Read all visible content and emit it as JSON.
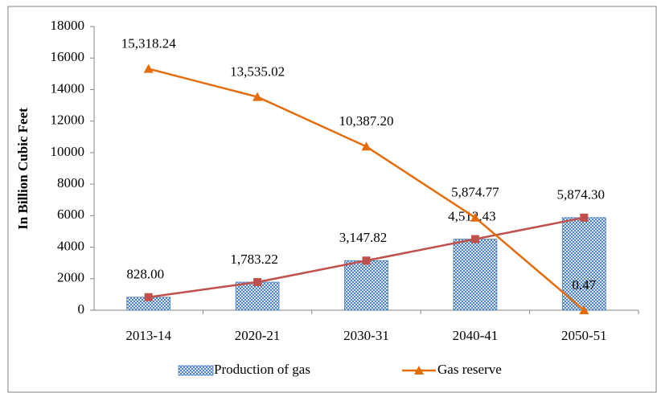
{
  "chart_data": {
    "type": "bar",
    "categories": [
      "2013-14",
      "2020-21",
      "2030-31",
      "2040-41",
      "2050-51"
    ],
    "ylabel": "In Billion Cubic Feet",
    "ylim": [
      0,
      18000
    ],
    "yticks": [
      0,
      2000,
      4000,
      6000,
      8000,
      10000,
      12000,
      14000,
      16000,
      18000
    ],
    "series": [
      {
        "name": "Production of gas",
        "kind": "bar",
        "color": "#4f81bd",
        "line_color": "#c0504d",
        "values": [
          828.0,
          1783.22,
          3147.82,
          4512.43,
          5874.3
        ],
        "value_labels": [
          "828.00",
          "1,783.22",
          "3,147.82",
          "4,512.43",
          "5,874.30"
        ]
      },
      {
        "name": "Gas reserve",
        "kind": "line",
        "color": "#e46c0a",
        "values": [
          15318.24,
          13535.02,
          10387.2,
          5874.77,
          0.47
        ],
        "value_labels": [
          "15,318.24",
          "13,535.02",
          "10,387.20",
          "5,874.77",
          "0.47"
        ]
      }
    ]
  }
}
